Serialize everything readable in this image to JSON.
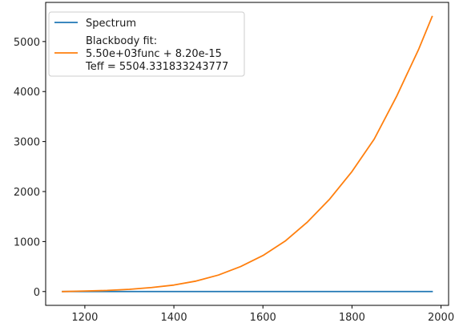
{
  "chart_data": {
    "type": "line",
    "title": "",
    "xlabel": "",
    "ylabel": "",
    "xlim": [
      1112,
      2017
    ],
    "ylim": [
      -276,
      5783
    ],
    "x_ticks": [
      1200,
      1400,
      1600,
      1800,
      2000
    ],
    "y_ticks": [
      0,
      1000,
      2000,
      3000,
      4000,
      5000
    ],
    "x_tick_labels": [
      "1200",
      "1400",
      "1600",
      "1800",
      "2000"
    ],
    "y_tick_labels": [
      "0",
      "1000",
      "2000",
      "3000",
      "4000",
      "5000"
    ],
    "grid": false,
    "legend_position": "top-left",
    "series": [
      {
        "name": "Spectrum",
        "color": "#1f77b4",
        "x": [
          1150,
          1250,
          1350,
          1450,
          1550,
          1650,
          1750,
          1850,
          1980
        ],
        "y": [
          0,
          0,
          0,
          0,
          0,
          0,
          0,
          0,
          0
        ]
      },
      {
        "name": "Blackbody fit:\n5.50e+03func + 8.20e-15\nTeff = 5504.331833243777",
        "color": "#ff7f0e",
        "x": [
          1150,
          1200,
          1250,
          1300,
          1350,
          1400,
          1450,
          1500,
          1550,
          1600,
          1650,
          1700,
          1750,
          1800,
          1850,
          1900,
          1950,
          1980
        ],
        "y": [
          0,
          10,
          22,
          45,
          80,
          130,
          210,
          330,
          500,
          720,
          1010,
          1390,
          1850,
          2400,
          3050,
          3900,
          4850,
          5500
        ]
      }
    ]
  },
  "legend": {
    "items": [
      {
        "lines": [
          "Spectrum"
        ]
      },
      {
        "lines": [
          "Blackbody fit:",
          "5.50e+03func + 8.20e-15",
          "Teff = 5504.331833243777"
        ]
      }
    ]
  }
}
